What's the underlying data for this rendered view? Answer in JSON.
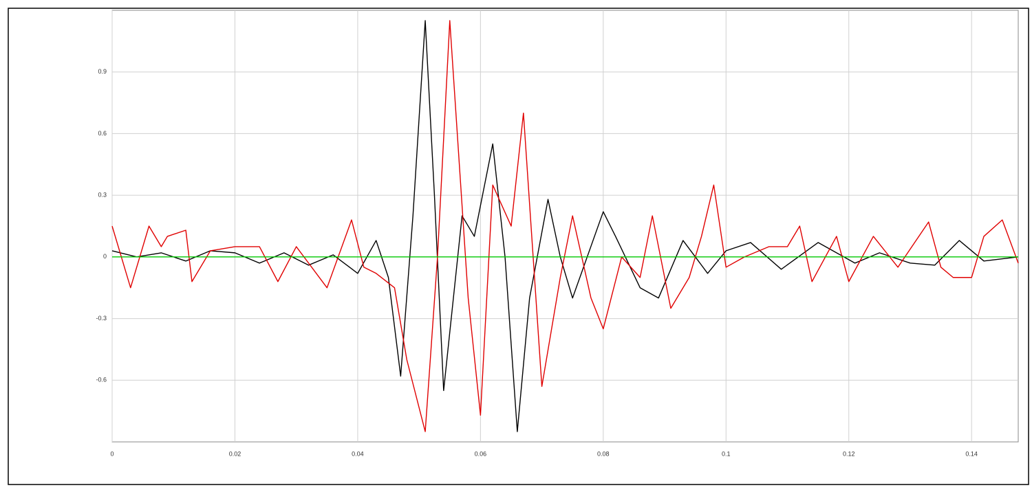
{
  "chart_data": {
    "type": "line",
    "xlim": [
      0,
      0.1476
    ],
    "ylim": [
      -0.9,
      1.2
    ],
    "xticks": [
      0,
      0.02,
      0.04,
      0.06,
      0.08,
      0.1,
      0.12,
      0.14
    ],
    "yticks": [
      0.9,
      0.6,
      0.3,
      0,
      -0.3,
      -0.6
    ],
    "grid": true,
    "series": [
      {
        "color": "#000000",
        "x": [
          0,
          0.004,
          0.008,
          0.012,
          0.016,
          0.02,
          0.024,
          0.028,
          0.032,
          0.036,
          0.04,
          0.043,
          0.045,
          0.047,
          0.049,
          0.051,
          0.0525,
          0.054,
          0.057,
          0.059,
          0.062,
          0.064,
          0.066,
          0.068,
          0.071,
          0.073,
          0.075,
          0.08,
          0.082,
          0.086,
          0.089,
          0.093,
          0.097,
          0.1,
          0.104,
          0.109,
          0.115,
          0.121,
          0.125,
          0.13,
          0.134,
          0.138,
          0.142,
          0.1476
        ],
        "values": [
          0.03,
          0.0,
          0.02,
          -0.02,
          0.03,
          0.02,
          -0.03,
          0.02,
          -0.04,
          0.01,
          -0.08,
          0.08,
          -0.1,
          -0.58,
          0.2,
          1.15,
          0.3,
          -0.65,
          0.2,
          0.1,
          0.55,
          0.0,
          -0.85,
          -0.2,
          0.28,
          0.0,
          -0.2,
          0.22,
          0.1,
          -0.15,
          -0.2,
          0.08,
          -0.08,
          0.03,
          0.07,
          -0.06,
          0.07,
          -0.03,
          0.02,
          -0.03,
          -0.04,
          0.08,
          -0.02,
          0.0
        ]
      },
      {
        "color": "#e00000",
        "x": [
          0,
          0.003,
          0.006,
          0.008,
          0.009,
          0.012,
          0.013,
          0.016,
          0.02,
          0.024,
          0.027,
          0.03,
          0.035,
          0.039,
          0.041,
          0.043,
          0.046,
          0.048,
          0.051,
          0.053,
          0.055,
          0.058,
          0.06,
          0.062,
          0.065,
          0.067,
          0.07,
          0.073,
          0.075,
          0.078,
          0.08,
          0.083,
          0.086,
          0.088,
          0.091,
          0.094,
          0.096,
          0.098,
          0.1,
          0.103,
          0.107,
          0.11,
          0.112,
          0.114,
          0.118,
          0.12,
          0.124,
          0.128,
          0.133,
          0.135,
          0.137,
          0.14,
          0.142,
          0.145,
          0.1476
        ],
        "values": [
          0.15,
          -0.15,
          0.15,
          0.05,
          0.1,
          0.13,
          -0.12,
          0.03,
          0.05,
          0.05,
          -0.12,
          0.05,
          -0.15,
          0.18,
          -0.05,
          -0.08,
          -0.15,
          -0.5,
          -0.85,
          0.0,
          1.15,
          -0.2,
          -0.77,
          0.35,
          0.15,
          0.7,
          -0.63,
          -0.1,
          0.2,
          -0.2,
          -0.35,
          0.0,
          -0.1,
          0.2,
          -0.25,
          -0.1,
          0.1,
          0.35,
          -0.05,
          0.0,
          0.05,
          0.05,
          0.15,
          -0.12,
          0.1,
          -0.12,
          0.1,
          -0.05,
          0.17,
          -0.05,
          -0.1,
          -0.1,
          0.1,
          0.18,
          -0.03
        ]
      },
      {
        "color": "#00c800",
        "x": [
          0,
          0.1476
        ],
        "values": [
          0,
          0
        ]
      }
    ]
  }
}
